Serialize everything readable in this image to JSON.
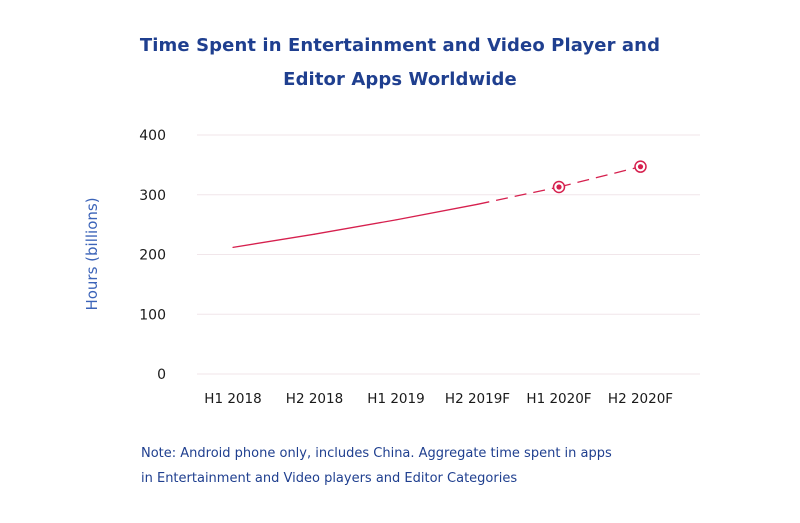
{
  "title_line1": "Time Spent in Entertainment and Video Player and",
  "title_line2": "Editor Apps Worldwide",
  "note_line1": "Note: Android phone only, includes China. Aggregate time spent in apps",
  "note_line2": "in Entertainment and Video players and Editor Categories",
  "colors": {
    "title": "#1f3f8f",
    "axis_label": "#3b63b8",
    "series": "#d6204e",
    "grid": "#f1e6ea"
  },
  "chart_data": {
    "type": "line",
    "ylabel": "Hours (billions)",
    "xlabel": "",
    "categories": [
      "H1 2018",
      "H2 2018",
      "H1 2019",
      "H2 2019F",
      "H1 2020F",
      "H2 2020F"
    ],
    "yticks": [
      "0",
      "100",
      "200",
      "300",
      "400"
    ],
    "ylim": [
      0,
      400
    ],
    "grid": true,
    "series": [
      {
        "values": [
          212,
          234,
          258,
          284,
          313,
          347
        ],
        "solid_through_index": 3,
        "dashed_from_index": 3,
        "highlighted_points": [
          4,
          5
        ]
      }
    ]
  }
}
